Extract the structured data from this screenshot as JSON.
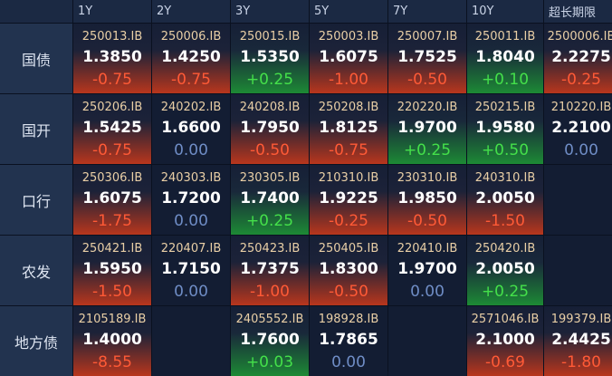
{
  "table": {
    "columns": [
      "1Y",
      "2Y",
      "3Y",
      "5Y",
      "7Y",
      "10Y",
      "超长期限"
    ],
    "rows": [
      {
        "label": "国债",
        "cells": [
          {
            "code": "250013.IB",
            "yield": "1.3850",
            "change": "-0.75"
          },
          {
            "code": "250006.IB",
            "yield": "1.4250",
            "change": "-0.75"
          },
          {
            "code": "250015.IB",
            "yield": "1.5350",
            "change": "+0.25"
          },
          {
            "code": "250003.IB",
            "yield": "1.6075",
            "change": "-1.00"
          },
          {
            "code": "250007.IB",
            "yield": "1.7525",
            "change": "-0.50"
          },
          {
            "code": "250011.IB",
            "yield": "1.8040",
            "change": "+0.10"
          },
          {
            "code": "2500006.IB",
            "yield": "2.2275",
            "change": "-0.25"
          }
        ]
      },
      {
        "label": "国开",
        "cells": [
          {
            "code": "250206.IB",
            "yield": "1.5425",
            "change": "-0.75"
          },
          {
            "code": "240202.IB",
            "yield": "1.6600",
            "change": "0.00"
          },
          {
            "code": "240208.IB",
            "yield": "1.7950",
            "change": "-0.50"
          },
          {
            "code": "250208.IB",
            "yield": "1.8125",
            "change": "-0.75"
          },
          {
            "code": "220220.IB",
            "yield": "1.9700",
            "change": "+0.25"
          },
          {
            "code": "250215.IB",
            "yield": "1.9580",
            "change": "+0.50"
          },
          {
            "code": "210220.IB",
            "yield": "2.2100",
            "change": "0.00"
          }
        ]
      },
      {
        "label": "口行",
        "cells": [
          {
            "code": "250306.IB",
            "yield": "1.6075",
            "change": "-1.75"
          },
          {
            "code": "240303.IB",
            "yield": "1.7200",
            "change": "0.00"
          },
          {
            "code": "230305.IB",
            "yield": "1.7400",
            "change": "+0.25"
          },
          {
            "code": "210310.IB",
            "yield": "1.9225",
            "change": "-0.25"
          },
          {
            "code": "230310.IB",
            "yield": "1.9850",
            "change": "-0.50"
          },
          {
            "code": "240310.IB",
            "yield": "2.0050",
            "change": "-1.50"
          },
          null
        ]
      },
      {
        "label": "农发",
        "cells": [
          {
            "code": "250421.IB",
            "yield": "1.5950",
            "change": "-1.50"
          },
          {
            "code": "220407.IB",
            "yield": "1.7150",
            "change": "0.00"
          },
          {
            "code": "250423.IB",
            "yield": "1.7375",
            "change": "-1.00"
          },
          {
            "code": "250405.IB",
            "yield": "1.8300",
            "change": "-0.50"
          },
          {
            "code": "220410.IB",
            "yield": "1.9700",
            "change": "0.00"
          },
          {
            "code": "250420.IB",
            "yield": "2.0050",
            "change": "+0.25"
          },
          null
        ]
      },
      {
        "label": "地方债",
        "cells": [
          {
            "code": "2105189.IB",
            "yield": "1.4000",
            "change": "-8.55"
          },
          null,
          {
            "code": "2405552.IB",
            "yield": "1.7600",
            "change": "+0.03"
          },
          {
            "code": "198928.IB",
            "yield": "1.7865",
            "change": "0.00"
          },
          null,
          {
            "code": "2571046.IB",
            "yield": "2.1000",
            "change": "-0.69"
          },
          {
            "code": "199379.IB",
            "yield": "2.4425",
            "change": "-1.80"
          }
        ]
      }
    ]
  }
}
